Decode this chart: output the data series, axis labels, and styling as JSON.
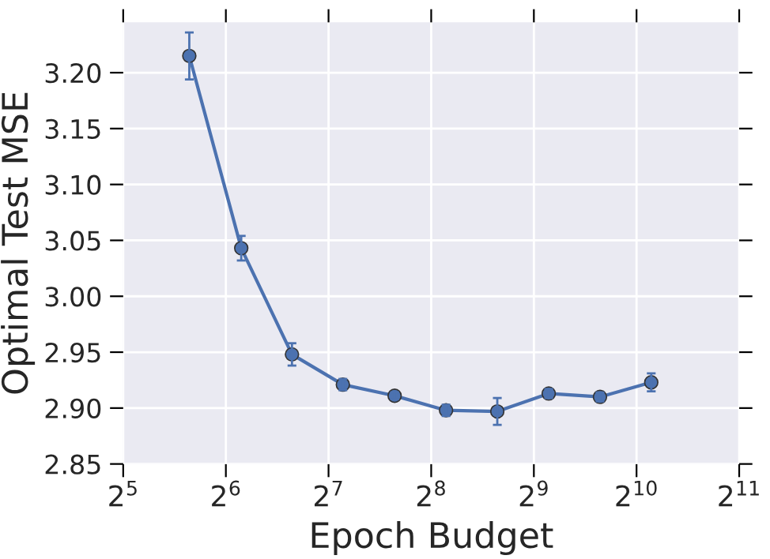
{
  "chart_data": {
    "type": "line",
    "xlabel": "Epoch Budget",
    "ylabel": "Optimal Test MSE",
    "x": [
      50,
      71,
      100,
      141,
      200,
      283,
      400,
      566,
      800,
      1131
    ],
    "series": [
      {
        "color": "#4c72b0",
        "values": [
          3.215,
          3.043,
          2.948,
          2.921,
          2.911,
          2.898,
          2.897,
          2.913,
          2.91,
          2.923
        ],
        "errors": [
          0.021,
          0.011,
          0.01,
          0.005,
          0.003,
          0.005,
          0.012,
          0.004,
          0.004,
          0.008
        ]
      }
    ],
    "log": "x",
    "marker": "circle",
    "line_style": "solid",
    "grid": true,
    "xlim": [
      32,
      2048
    ],
    "xticks": [
      {
        "value": 32,
        "label": "2$^{5}$"
      },
      {
        "value": 64,
        "label": "2$^{6}$"
      },
      {
        "value": 128,
        "label": "2$^{7}$"
      },
      {
        "value": 256,
        "label": "2$^{8}$"
      },
      {
        "value": 512,
        "label": "2$^{9}$"
      },
      {
        "value": 1024,
        "label": "2$^{10}$"
      },
      {
        "value": 2048,
        "label": "2$^{11}$"
      }
    ],
    "ylim": [
      2.85,
      3.245
    ],
    "yticks": [
      {
        "value": 2.85,
        "label": "2.85"
      },
      {
        "value": 2.9,
        "label": "2.90"
      },
      {
        "value": 2.95,
        "label": "2.95"
      },
      {
        "value": 3.0,
        "label": "3.00"
      },
      {
        "value": 3.05,
        "label": "3.05"
      },
      {
        "value": 3.1,
        "label": "3.10"
      },
      {
        "value": 3.15,
        "label": "3.15"
      },
      {
        "value": 3.2,
        "label": "3.20"
      }
    ]
  }
}
